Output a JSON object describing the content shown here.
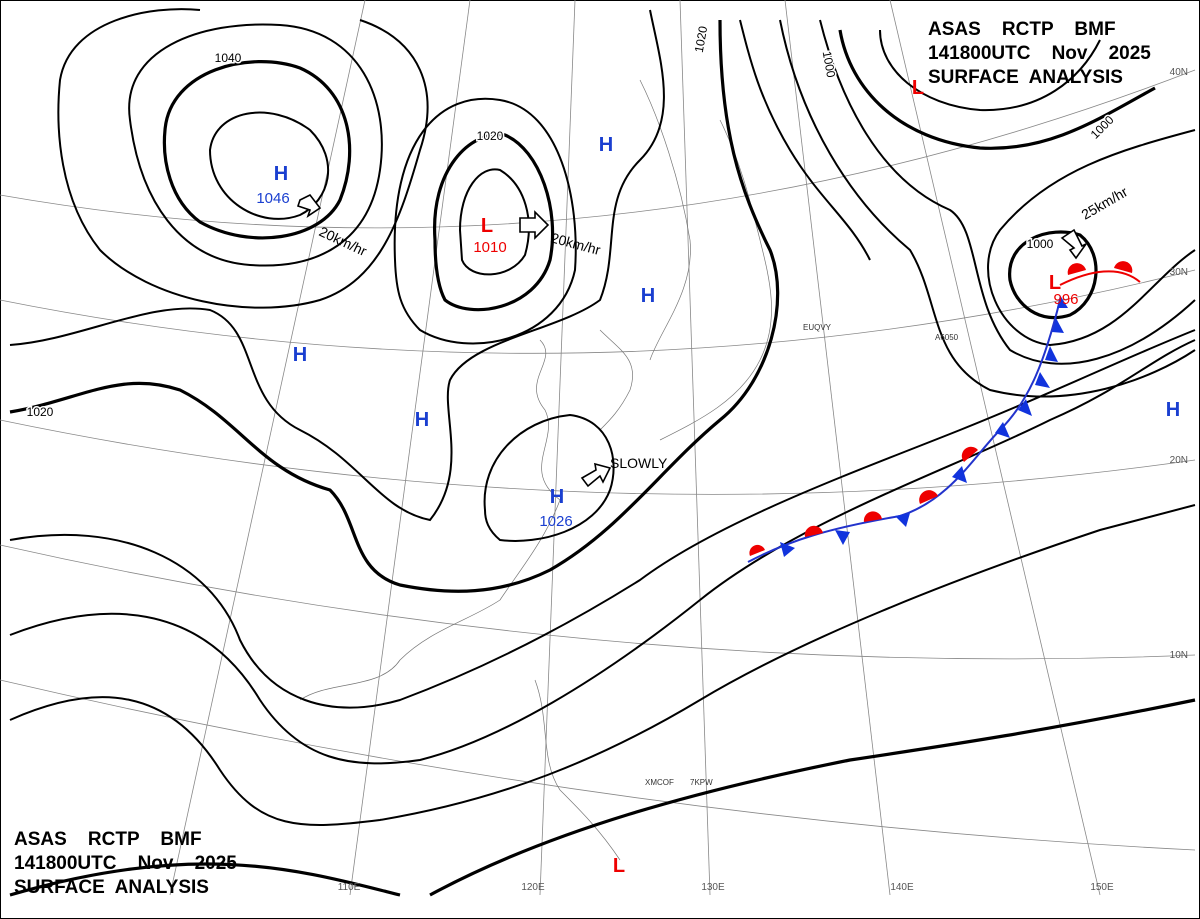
{
  "header": {
    "lines": [
      "ASAS    RCTP    BMF",
      "141800UTC    Nov    2025",
      "SURFACE  ANALYSIS"
    ]
  },
  "centers": [
    {
      "type": "H",
      "value": 1046
    },
    {
      "type": "L",
      "value": 1010
    },
    {
      "type": "H",
      "value": 1026
    },
    {
      "type": "L",
      "value": 996
    },
    {
      "type": "H"
    },
    {
      "type": "H"
    },
    {
      "type": "H"
    },
    {
      "type": "H"
    },
    {
      "type": "H"
    },
    {
      "type": "L"
    },
    {
      "type": "L"
    }
  ],
  "isobar_labels": [
    1040,
    1020,
    1020,
    1020,
    1000,
    1000,
    1000
  ],
  "motions": [
    "20km/hr",
    "20km/hr",
    "SLOWLY",
    "25km/hr"
  ],
  "graticule_labels": {
    "lon": [
      "110E",
      "120E",
      "130E",
      "140E",
      "150E"
    ],
    "lat": [
      "40N",
      "30N",
      "20N",
      "10N"
    ]
  },
  "stations": [
    "EUQVY",
    "XMCOF",
    "7KPW",
    "A6050"
  ]
}
